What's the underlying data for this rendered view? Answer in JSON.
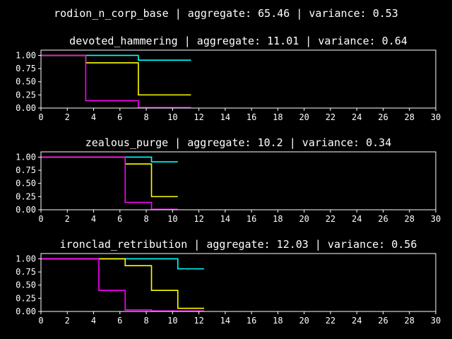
{
  "suptitle": "rodion_n_corp_base | aggregate: 65.46 | variance: 0.53",
  "chart_data": [
    {
      "type": "line",
      "step": true,
      "title": "devoted_hammering | aggregate: 11.01 | variance: 0.64",
      "xlim": [
        0,
        30
      ],
      "ylim": [
        0,
        1.1
      ],
      "xticks": [
        "0",
        "2",
        "4",
        "6",
        "8",
        "10",
        "12",
        "14",
        "16",
        "18",
        "20",
        "22",
        "24",
        "26",
        "28",
        "30"
      ],
      "yticks": [
        "0.00",
        "0.25",
        "0.50",
        "0.75",
        "1.00"
      ],
      "series": [
        {
          "color": "#00ffff",
          "x": [
            0,
            7.4,
            11.4
          ],
          "y": [
            1.0,
            0.91,
            0.91
          ]
        },
        {
          "color": "#ffff00",
          "x": [
            0,
            3.4,
            7.4,
            11.4
          ],
          "y": [
            1.0,
            0.86,
            0.25,
            0.25
          ]
        },
        {
          "color": "#ff00ff",
          "x": [
            0,
            3.4,
            7.4,
            11.4
          ],
          "y": [
            1.0,
            0.14,
            0.01,
            0.01
          ]
        }
      ]
    },
    {
      "type": "line",
      "step": true,
      "title": "zealous_purge | aggregate: 10.2 | variance: 0.34",
      "xlim": [
        0,
        30
      ],
      "ylim": [
        0,
        1.1
      ],
      "xticks": [
        "0",
        "2",
        "4",
        "6",
        "8",
        "10",
        "12",
        "14",
        "16",
        "18",
        "20",
        "22",
        "24",
        "26",
        "28",
        "30"
      ],
      "yticks": [
        "0.00",
        "0.25",
        "0.50",
        "0.75",
        "1.00"
      ],
      "series": [
        {
          "color": "#00ffff",
          "x": [
            0,
            8.4,
            10.4
          ],
          "y": [
            1.0,
            0.91,
            0.91
          ]
        },
        {
          "color": "#ffff00",
          "x": [
            0,
            6.4,
            8.4,
            10.4
          ],
          "y": [
            1.0,
            0.87,
            0.25,
            0.25
          ]
        },
        {
          "color": "#ff00ff",
          "x": [
            0,
            6.4,
            8.4,
            10.4
          ],
          "y": [
            1.0,
            0.14,
            0.01,
            0.01
          ]
        }
      ]
    },
    {
      "type": "line",
      "step": true,
      "title": "ironclad_retribution | aggregate: 12.03 | variance: 0.56",
      "xlim": [
        0,
        30
      ],
      "ylim": [
        0,
        1.1
      ],
      "xticks": [
        "0",
        "2",
        "4",
        "6",
        "8",
        "10",
        "12",
        "14",
        "16",
        "18",
        "20",
        "22",
        "24",
        "26",
        "28",
        "30"
      ],
      "yticks": [
        "0.00",
        "0.25",
        "0.50",
        "0.75",
        "1.00"
      ],
      "series": [
        {
          "color": "#00ffff",
          "x": [
            0,
            10.4,
            12.4
          ],
          "y": [
            1.0,
            0.81,
            0.81
          ]
        },
        {
          "color": "#ffff00",
          "x": [
            0,
            6.4,
            8.4,
            10.4,
            12.4
          ],
          "y": [
            1.0,
            0.87,
            0.4,
            0.06,
            0.06
          ]
        },
        {
          "color": "#ff00ff",
          "x": [
            0,
            4.4,
            6.4,
            8.4,
            12.4
          ],
          "y": [
            1.0,
            0.4,
            0.03,
            0.01,
            0.01
          ]
        }
      ]
    }
  ]
}
